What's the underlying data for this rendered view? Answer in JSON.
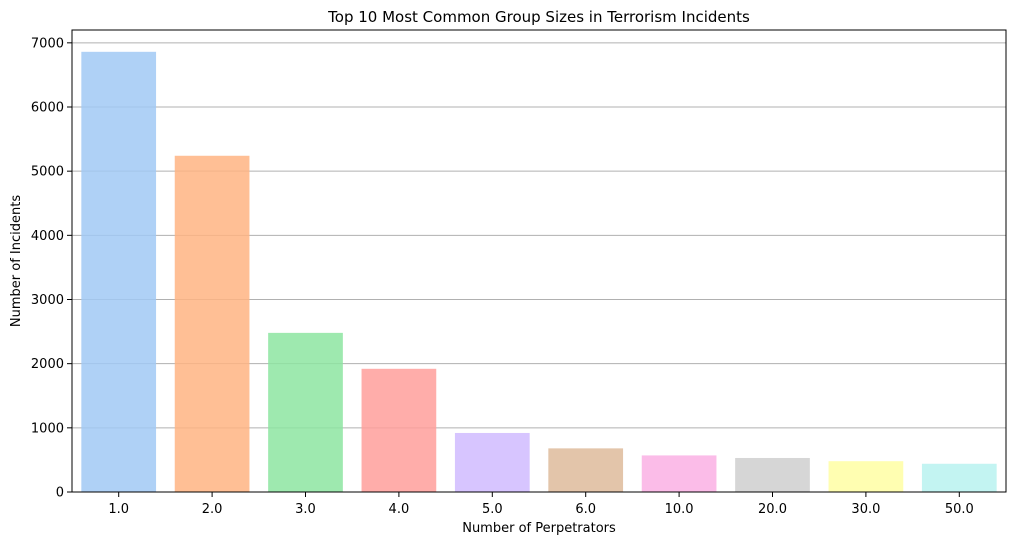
{
  "chart_data": {
    "type": "bar",
    "title": "Top 10 Most Common Group Sizes in Terrorism Incidents",
    "xlabel": "Number of Perpetrators",
    "ylabel": "Number of Incidents",
    "categories": [
      "1.0",
      "2.0",
      "3.0",
      "4.0",
      "5.0",
      "6.0",
      "10.0",
      "20.0",
      "30.0",
      "50.0"
    ],
    "values": [
      6860,
      5240,
      2480,
      1920,
      920,
      680,
      570,
      530,
      480,
      440
    ],
    "colors": [
      "#a1c9f4",
      "#ffb482",
      "#8de5a1",
      "#ff9f9b",
      "#d0bbff",
      "#debb9b",
      "#fab0e4",
      "#cfcfcf",
      "#fffea3",
      "#b9f2f0"
    ],
    "ylim": [
      0,
      7200
    ],
    "yticks": [
      0,
      1000,
      2000,
      3000,
      4000,
      5000,
      6000,
      7000
    ],
    "ytick_labels": [
      "0",
      "1000",
      "2000",
      "3000",
      "4000",
      "5000",
      "6000",
      "7000"
    ],
    "grid": "y",
    "bar_opacity": 0.85
  }
}
